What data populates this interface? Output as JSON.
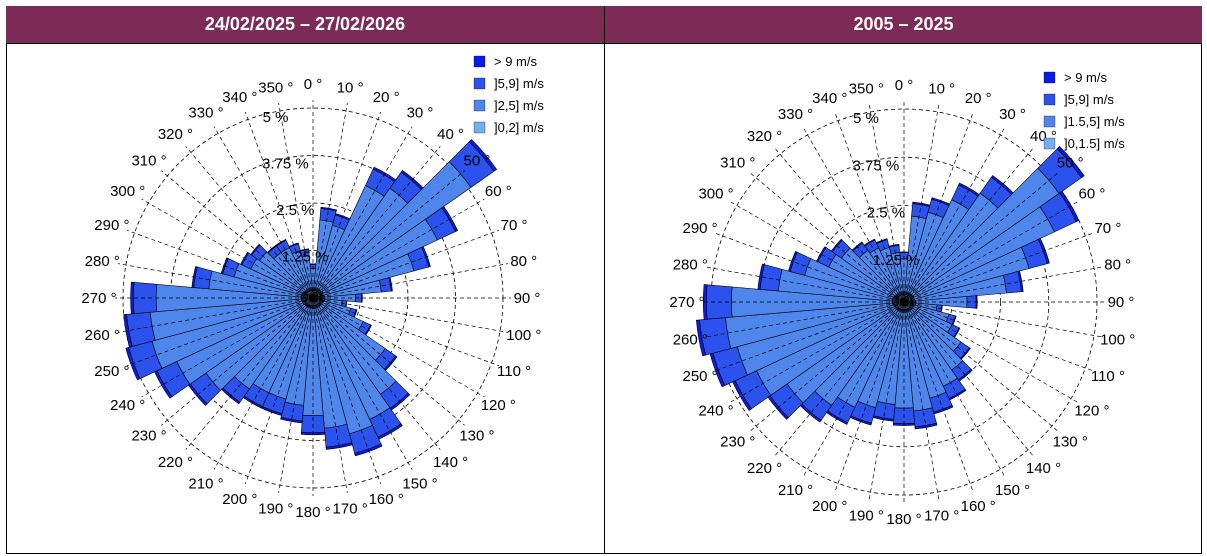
{
  "panels": {
    "left": {
      "title": "24/02/2025 – 27/02/2026"
    },
    "right": {
      "title": "2005 – 2025"
    }
  },
  "colors": {
    "header_bg": "#7b2b56",
    "gt9": "#0a1be8",
    "b59": "#2b52ec",
    "b25": "#4f86ec",
    "b02": "#74aef0"
  },
  "chart_data": [
    {
      "type": "wind_rose",
      "title": "24/02/2025 – 27/02/2026",
      "radial_ticks": [
        "1.25 %",
        "2.5 %",
        "3.75 %",
        "5 %"
      ],
      "radial_values": [
        1.25,
        2.5,
        3.75,
        5
      ],
      "angle_labels": [
        "0 °",
        "10 °",
        "20 °",
        "30 °",
        "40 °",
        "50 °",
        "60 °",
        "70 °",
        "80 °",
        "90 °",
        "100 °",
        "110 °",
        "120 °",
        "130 °",
        "140 °",
        "150 °",
        "160 °",
        "170 °",
        "180 °",
        "190 °",
        "200 °",
        "210 °",
        "220 °",
        "230 °",
        "240 °",
        "250 °",
        "260 °",
        "270 °",
        "280 °",
        "290 °",
        "300 °",
        "310 °",
        "320 °",
        "330 °",
        "340 °",
        "350 °"
      ],
      "center_label": "0 %",
      "legend": [
        {
          "label": "> 9 m/s",
          "color": "#0a1be8"
        },
        {
          "label": "]5,9] m/s",
          "color": "#2b52ec"
        },
        {
          "label": "]2,5] m/s",
          "color": "#4f86ec"
        },
        {
          "label": "]0,2] m/s",
          "color": "#74aef0"
        }
      ],
      "directions": [
        0,
        10,
        20,
        30,
        40,
        50,
        60,
        70,
        80,
        90,
        100,
        110,
        120,
        130,
        140,
        150,
        160,
        170,
        180,
        190,
        200,
        210,
        220,
        230,
        240,
        250,
        260,
        270,
        280,
        290,
        300,
        310,
        320,
        330,
        340,
        350
      ],
      "totals": [
        0.9,
        2.4,
        2.3,
        3.8,
        4.1,
        5.9,
        4.2,
        3.2,
        2.1,
        1.3,
        0.9,
        1.2,
        1.7,
        2.7,
        3.6,
        4.1,
        4.3,
        4.0,
        3.6,
        3.3,
        3.2,
        3.2,
        3.4,
        4.0,
        4.6,
        5.1,
        5.0,
        4.8,
        3.2,
        2.5,
        2.1,
        2.0,
        1.7,
        1.7,
        1.5,
        1.3
      ],
      "proportions": [
        0.03,
        0.25,
        0.72
      ]
    },
    {
      "type": "wind_rose",
      "title": "2005 – 2025",
      "radial_ticks": [
        "1.25 %",
        "2.5 %",
        "3.75 %",
        "5 %"
      ],
      "radial_values": [
        1.25,
        2.5,
        3.75,
        5
      ],
      "angle_labels": [
        "0 °",
        "10 °",
        "20 °",
        "30 °",
        "40 °",
        "50 °",
        "60 °",
        "70 °",
        "80 °",
        "90 °",
        "100 °",
        "110 °",
        "120 °",
        "130 °",
        "140 °",
        "150 °",
        "160 °",
        "170 °",
        "180 °",
        "190 °",
        "200 °",
        "210 °",
        "220 °",
        "230 °",
        "240 °",
        "250 °",
        "260 °",
        "270 °",
        "280 °",
        "290 °",
        "300 °",
        "310 °",
        "320 °",
        "330 °",
        "340 °",
        "350 °"
      ],
      "center_label": "0 %",
      "legend": [
        {
          "label": "> 9 m/s",
          "color": "#0a1be8"
        },
        {
          "label": "]5,9] m/s",
          "color": "#2b52ec"
        },
        {
          "label": "]1.5,5] m/s",
          "color": "#4f86ec"
        },
        {
          "label": "]0,1.5] m/s",
          "color": "#74aef0"
        }
      ],
      "directions": [
        0,
        10,
        20,
        30,
        40,
        50,
        60,
        70,
        80,
        90,
        100,
        110,
        120,
        130,
        140,
        150,
        160,
        170,
        180,
        190,
        200,
        210,
        220,
        230,
        240,
        250,
        260,
        270,
        280,
        290,
        300,
        310,
        320,
        330,
        340,
        350
      ],
      "totals": [
        1.3,
        2.6,
        2.8,
        3.4,
        4.0,
        5.7,
        5.0,
        3.9,
        3.1,
        1.9,
        1.0,
        1.4,
        1.6,
        2.1,
        2.5,
        2.8,
        3.0,
        3.3,
        3.2,
        3.1,
        3.3,
        3.5,
        3.8,
        4.3,
        4.9,
        5.2,
        5.4,
        5.2,
        3.8,
        3.1,
        2.5,
        2.3,
        1.9,
        1.8,
        1.7,
        1.5
      ],
      "proportions": [
        0.02,
        0.22,
        0.7
      ]
    }
  ]
}
